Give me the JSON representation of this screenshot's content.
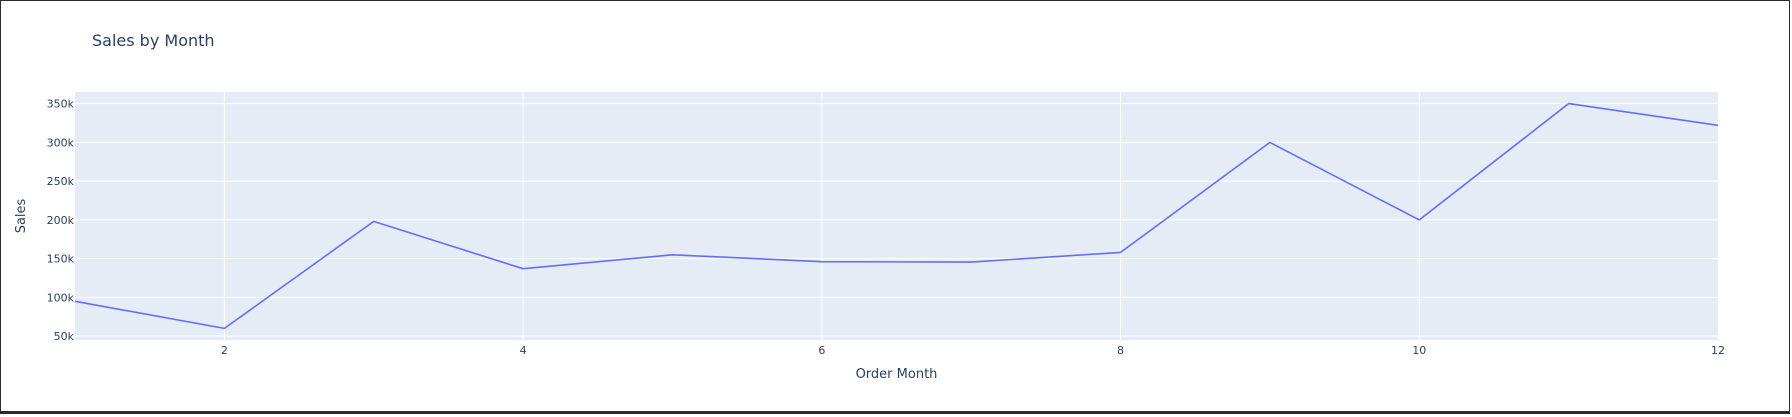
{
  "chart_data": {
    "type": "line",
    "title": "Sales by Month",
    "xlabel": "Order Month",
    "ylabel": "Sales",
    "x": [
      1,
      2,
      3,
      4,
      5,
      6,
      7,
      8,
      9,
      10,
      11,
      12
    ],
    "xlim": [
      1,
      12
    ],
    "ylim": [
      45000,
      365000
    ],
    "x_ticks": [
      2,
      4,
      6,
      8,
      10,
      12
    ],
    "y_ticks": [
      50000,
      100000,
      150000,
      200000,
      250000,
      300000,
      350000
    ],
    "y_tick_labels": [
      "50k",
      "100k",
      "150k",
      "200k",
      "250k",
      "300k",
      "350k"
    ],
    "series": [
      {
        "values": [
          95000,
          60000,
          198000,
          137000,
          155000,
          146000,
          145500,
          158000,
          300000,
          200000,
          350000,
          322000
        ],
        "color": "#636efa"
      }
    ],
    "plot_bgcolor": "#e5ecf6",
    "gridcolor": "#ffffff",
    "grid": true,
    "legend": "none"
  }
}
